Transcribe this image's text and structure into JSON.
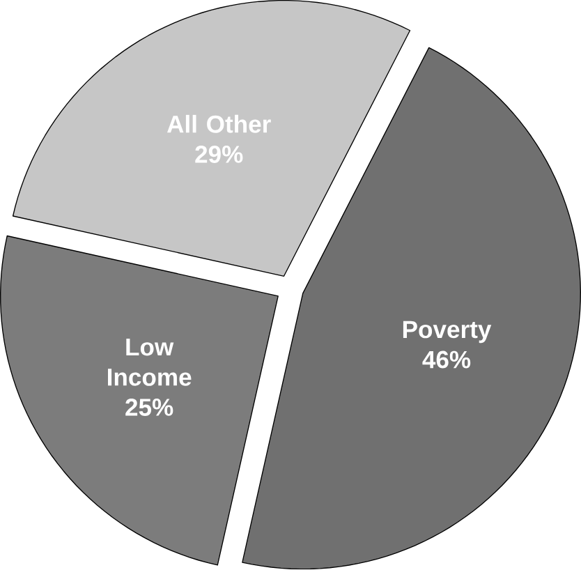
{
  "chart_data": {
    "type": "pie",
    "categories": [
      "Poverty",
      "Low Income",
      "All Other"
    ],
    "values": [
      46,
      25,
      29
    ],
    "value_labels": [
      "46%",
      "25%",
      "29%"
    ],
    "colors": [
      "#707070",
      "#7c7c7c",
      "#c6c6c6"
    ]
  }
}
